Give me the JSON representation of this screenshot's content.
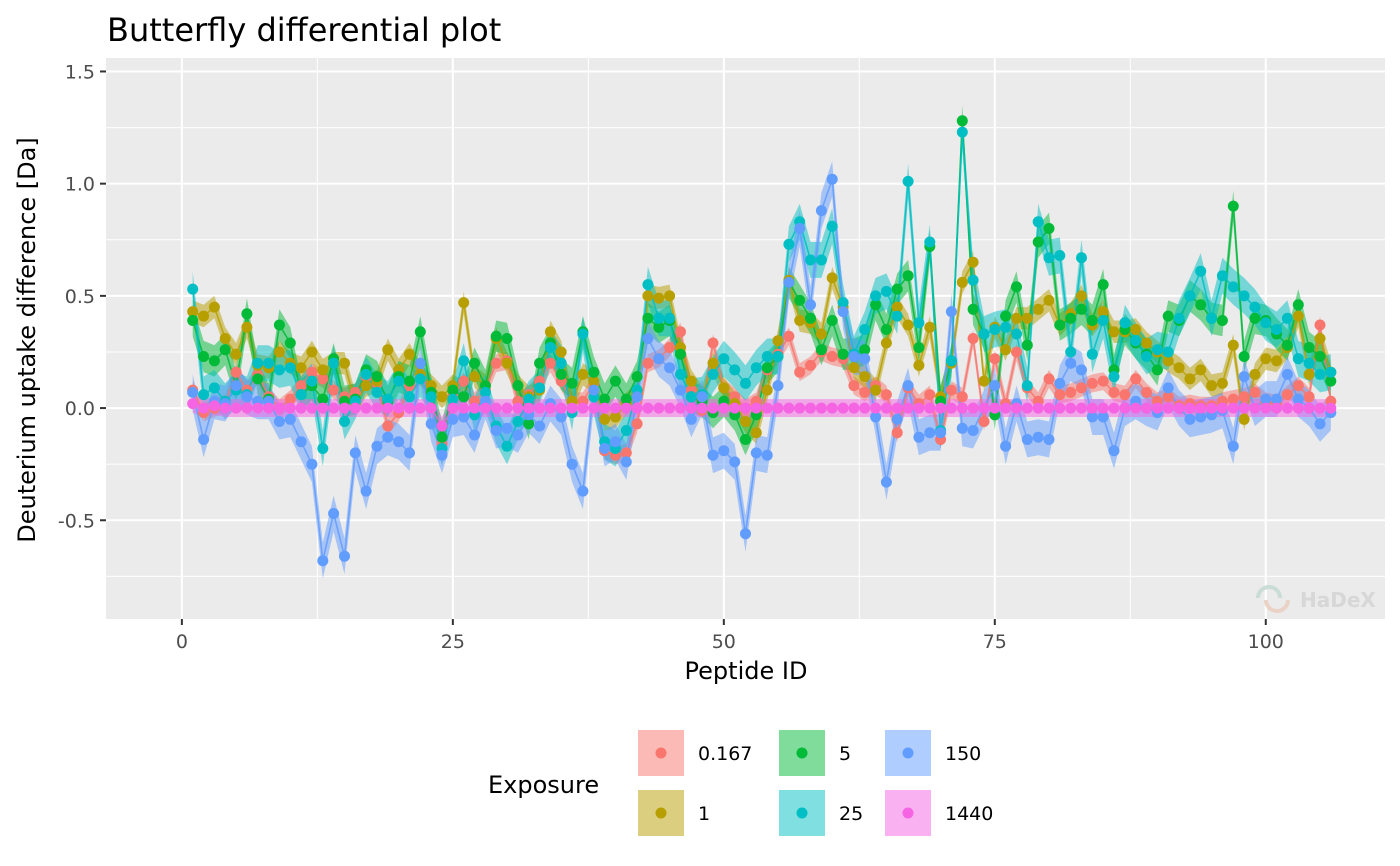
{
  "chart_data": {
    "type": "line",
    "title": "Butterfly differential plot",
    "xlabel": "Peptide ID",
    "ylabel": "Deuterium uptake difference [Da]",
    "xlim": [
      -7,
      111
    ],
    "ylim": [
      -0.94,
      1.56
    ],
    "x_ticks": [
      0,
      25,
      50,
      75,
      100
    ],
    "x_tick_labels": [
      "0",
      "25",
      "50",
      "75",
      "100"
    ],
    "y_ticks": [
      -0.5,
      0.0,
      0.5,
      1.0,
      1.5
    ],
    "y_tick_labels": [
      "-0.5",
      "0.0",
      "0.5",
      "1.0",
      "1.5"
    ],
    "grid": true,
    "legend_position": "bottom",
    "legend_title": "Exposure",
    "watermark": "HaDeX",
    "x": [
      1,
      2,
      3,
      4,
      5,
      6,
      7,
      8,
      9,
      10,
      11,
      12,
      13,
      14,
      15,
      16,
      17,
      18,
      19,
      20,
      21,
      22,
      23,
      24,
      25,
      26,
      27,
      28,
      29,
      30,
      31,
      32,
      33,
      34,
      35,
      36,
      37,
      38,
      39,
      40,
      41,
      42,
      43,
      44,
      45,
      46,
      47,
      48,
      49,
      50,
      51,
      52,
      53,
      54,
      55,
      56,
      57,
      58,
      59,
      60,
      61,
      62,
      63,
      64,
      65,
      66,
      67,
      68,
      69,
      70,
      71,
      72,
      73,
      74,
      75,
      76,
      77,
      78,
      79,
      80,
      81,
      82,
      83,
      84,
      85,
      86,
      87,
      88,
      89,
      90,
      91,
      92,
      93,
      94,
      95,
      96,
      97,
      98,
      99,
      100,
      101,
      102,
      103,
      104,
      105,
      106
    ],
    "series": [
      {
        "name": "0.167",
        "color": "#F8766D",
        "band": 0.04,
        "values": [
          0.08,
          -0.02,
          0.0,
          0.02,
          0.16,
          0.08,
          0.15,
          0.05,
          0.0,
          0.04,
          0.1,
          0.16,
          0.13,
          0.08,
          0.05,
          0.07,
          0.14,
          0.11,
          -0.08,
          -0.02,
          0.1,
          0.15,
          0.07,
          -0.16,
          0.05,
          0.12,
          0.03,
          0.08,
          0.2,
          0.21,
          0.03,
          0.06,
          0.12,
          0.2,
          0.12,
          0.03,
          0.03,
          0.11,
          -0.19,
          -0.21,
          -0.2,
          -0.07,
          0.2,
          0.22,
          0.27,
          0.34,
          0.08,
          -0.01,
          0.29,
          0.09,
          0.05,
          0.0,
          0.03,
          0.17,
          0.24,
          0.32,
          0.16,
          0.19,
          0.25,
          0.23,
          0.22,
          0.1,
          0.07,
          0.1,
          0.06,
          -0.11,
          0.09,
          0.02,
          0.06,
          -0.14,
          0.08,
          0.05,
          0.31,
          -0.06,
          0.22,
          0.02,
          0.25,
          0.09,
          0.03,
          0.13,
          0.06,
          0.07,
          0.09,
          0.11,
          0.12,
          0.07,
          0.06,
          0.13,
          0.07,
          0.03,
          0.05,
          0.01,
          0.02,
          0.01,
          0.01,
          0.03,
          0.04,
          0.05,
          0.07,
          0.03,
          0.02,
          0.06,
          0.1,
          0.05,
          0.37,
          0.03
        ]
      },
      {
        "name": "1",
        "color": "#B79F00",
        "band": 0.05,
        "values": [
          0.43,
          0.41,
          0.45,
          0.31,
          0.24,
          0.36,
          0.19,
          0.18,
          0.25,
          0.2,
          0.18,
          0.25,
          0.17,
          0.2,
          0.2,
          0.02,
          0.1,
          0.12,
          0.26,
          0.17,
          0.24,
          0.15,
          0.1,
          0.05,
          0.1,
          0.47,
          0.14,
          0.1,
          0.31,
          0.2,
          0.1,
          0.05,
          0.08,
          0.34,
          0.25,
          0.03,
          0.15,
          0.12,
          -0.05,
          -0.04,
          0.02,
          0.06,
          0.5,
          0.49,
          0.5,
          0.27,
          0.12,
          0.05,
          0.2,
          0.09,
          0.02,
          -0.06,
          -0.11,
          0.08,
          0.3,
          0.57,
          0.39,
          0.38,
          0.33,
          0.58,
          0.45,
          0.18,
          0.14,
          0.08,
          0.29,
          0.45,
          0.37,
          0.19,
          0.36,
          0.05,
          0.2,
          0.56,
          0.65,
          0.12,
          0.36,
          0.26,
          0.4,
          0.4,
          0.44,
          0.48,
          0.37,
          0.42,
          0.5,
          0.37,
          0.43,
          0.34,
          0.34,
          0.35,
          0.29,
          0.25,
          0.21,
          0.18,
          0.13,
          0.17,
          0.1,
          0.11,
          0.28,
          -0.05,
          0.15,
          0.22,
          0.21,
          0.27,
          0.41,
          0.15,
          0.31,
          0.16
        ]
      },
      {
        "name": "5",
        "color": "#00BA38",
        "band": 0.07,
        "values": [
          0.39,
          0.23,
          0.21,
          0.26,
          0.1,
          0.42,
          0.13,
          0.04,
          0.37,
          0.29,
          0.06,
          0.1,
          0.04,
          0.22,
          0.03,
          0.04,
          0.17,
          0.14,
          0.03,
          0.14,
          0.12,
          0.34,
          0.07,
          -0.13,
          0.08,
          0.05,
          0.2,
          0.1,
          0.32,
          0.31,
          0.1,
          -0.07,
          0.2,
          0.29,
          0.15,
          0.11,
          0.34,
          0.16,
          0.04,
          0.12,
          0.04,
          0.14,
          0.4,
          0.36,
          0.39,
          0.24,
          0.05,
          0.03,
          -0.02,
          0.03,
          -0.03,
          -0.14,
          -0.03,
          0.18,
          0.23,
          0.56,
          0.48,
          0.4,
          0.26,
          0.39,
          0.24,
          0.24,
          0.26,
          0.46,
          0.35,
          0.53,
          0.59,
          0.27,
          0.72,
          0.03,
          0.21,
          1.28,
          0.44,
          0.33,
          -0.03,
          0.41,
          0.54,
          0.28,
          0.74,
          0.8,
          0.37,
          0.4,
          0.44,
          0.39,
          0.55,
          0.17,
          0.35,
          0.29,
          0.24,
          0.17,
          0.41,
          0.39,
          0.5,
          0.46,
          0.4,
          0.39,
          0.9,
          0.23,
          0.4,
          0.39,
          0.33,
          0.28,
          0.46,
          0.27,
          0.23,
          0.12
        ]
      },
      {
        "name": "25",
        "color": "#00BFC4",
        "band": 0.08,
        "values": [
          0.53,
          0.06,
          0.09,
          0.03,
          0.08,
          0.06,
          0.2,
          0.2,
          0.17,
          0.18,
          0.06,
          0.12,
          -0.18,
          0.2,
          -0.06,
          0.03,
          0.15,
          0.07,
          0.04,
          0.12,
          0.05,
          0.13,
          0.05,
          -0.18,
          0.04,
          0.21,
          -0.03,
          0.07,
          -0.08,
          -0.17,
          -0.06,
          0.04,
          0.09,
          0.27,
          0.2,
          -0.02,
          0.33,
          0.05,
          -0.15,
          -0.18,
          -0.1,
          0.08,
          0.55,
          0.4,
          0.4,
          0.15,
          0.05,
          0.06,
          0.15,
          0.22,
          0.17,
          0.11,
          0.18,
          0.23,
          0.23,
          0.73,
          0.83,
          0.66,
          0.66,
          0.81,
          0.47,
          0.24,
          0.35,
          0.5,
          0.52,
          0.41,
          1.01,
          0.38,
          0.74,
          -0.1,
          0.21,
          1.23,
          0.57,
          0.33,
          0.35,
          0.36,
          0.33,
          0.1,
          0.83,
          0.67,
          0.68,
          0.25,
          0.67,
          0.24,
          0.39,
          0.14,
          0.38,
          0.3,
          0.23,
          0.26,
          0.25,
          0.4,
          0.5,
          0.61,
          0.4,
          0.59,
          0.54,
          0.5,
          0.45,
          0.38,
          0.35,
          0.4,
          0.22,
          0.2,
          0.15,
          0.16
        ]
      },
      {
        "name": "150",
        "color": "#619CFF",
        "band": 0.08,
        "values": [
          0.07,
          -0.14,
          0.03,
          0.02,
          0.1,
          0.05,
          0.03,
          0.03,
          -0.06,
          -0.05,
          -0.15,
          -0.25,
          -0.68,
          -0.47,
          -0.66,
          -0.2,
          -0.37,
          -0.17,
          -0.13,
          -0.15,
          -0.2,
          0.2,
          -0.07,
          -0.21,
          -0.05,
          -0.04,
          -0.12,
          0.03,
          -0.1,
          -0.09,
          -0.12,
          -0.03,
          -0.08,
          0.02,
          -0.04,
          -0.25,
          -0.37,
          0.08,
          -0.18,
          -0.15,
          -0.24,
          0.05,
          0.31,
          0.22,
          0.18,
          0.08,
          -0.05,
          0.05,
          -0.21,
          -0.19,
          -0.24,
          -0.56,
          -0.2,
          -0.21,
          0.1,
          0.56,
          0.8,
          0.46,
          0.88,
          1.02,
          0.43,
          0.23,
          0.22,
          -0.04,
          -0.33,
          -0.05,
          0.1,
          -0.13,
          -0.11,
          -0.11,
          0.43,
          -0.09,
          -0.1,
          0.0,
          0.1,
          -0.17,
          0.02,
          -0.14,
          -0.13,
          -0.14,
          0.11,
          0.2,
          0.17,
          -0.04,
          -0.04,
          -0.19,
          0.0,
          0.03,
          0.0,
          -0.02,
          0.09,
          0.0,
          -0.05,
          -0.04,
          -0.03,
          -0.01,
          -0.17,
          0.14,
          0.0,
          0.04,
          0.04,
          0.15,
          0.04,
          0.0,
          -0.07,
          -0.02
        ]
      },
      {
        "name": "1440",
        "color": "#F564E3",
        "band": 0.04,
        "values": [
          0.02,
          0.0,
          0.01,
          0.0,
          0.0,
          0.0,
          0.0,
          0.0,
          0.0,
          0.0,
          0.0,
          0.0,
          0.0,
          0.0,
          0.0,
          0.0,
          0.0,
          0.0,
          0.0,
          0.0,
          0.0,
          0.0,
          0.0,
          -0.08,
          0.0,
          0.0,
          0.0,
          0.0,
          0.0,
          0.0,
          0.0,
          0.0,
          0.0,
          0.0,
          0.0,
          0.0,
          0.0,
          0.0,
          0.0,
          0.0,
          0.0,
          0.0,
          0.0,
          0.0,
          0.0,
          0.0,
          0.0,
          0.0,
          0.0,
          0.0,
          0.0,
          0.0,
          0.0,
          0.0,
          0.0,
          0.0,
          0.0,
          0.0,
          0.0,
          0.0,
          0.0,
          0.0,
          0.0,
          0.0,
          0.0,
          0.0,
          0.0,
          0.0,
          0.0,
          0.0,
          0.0,
          0.0,
          0.0,
          0.0,
          0.0,
          0.0,
          0.0,
          0.0,
          0.0,
          0.0,
          0.0,
          0.0,
          0.0,
          0.0,
          0.0,
          0.0,
          0.0,
          0.0,
          0.0,
          0.0,
          0.0,
          0.0,
          0.0,
          0.0,
          0.0,
          0.0,
          0.0,
          0.0,
          0.0,
          0.0,
          0.0,
          0.0,
          0.0,
          0.0,
          0.0,
          0.0
        ]
      }
    ]
  }
}
